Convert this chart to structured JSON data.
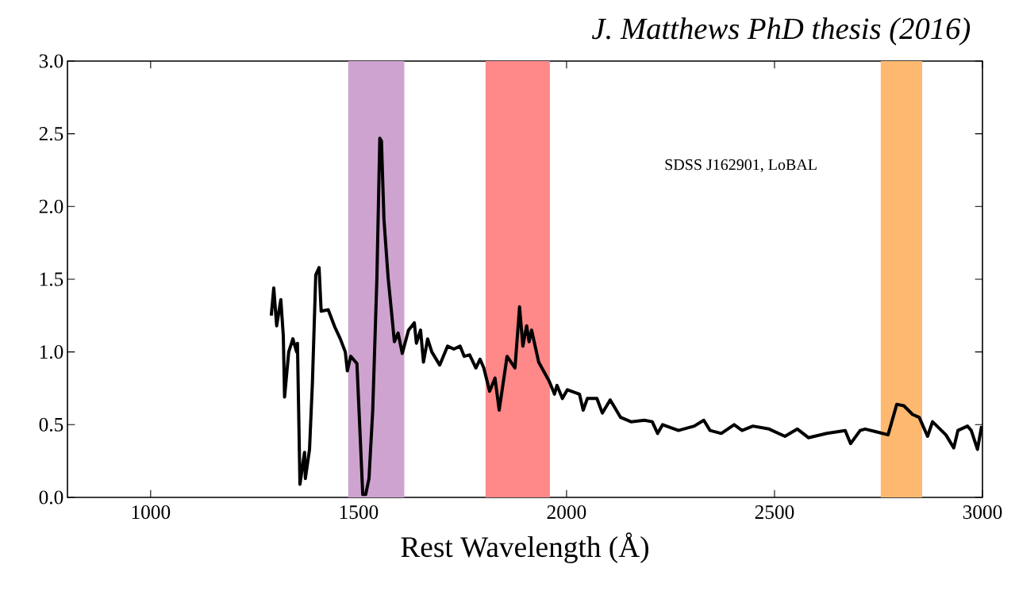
{
  "chart_data": {
    "type": "line",
    "title": "J. Matthews PhD thesis (2016)",
    "xlabel": "Rest Wavelength (Å)",
    "annotations": [
      "SDSS J162901, LoBAL"
    ],
    "x": [
      1290,
      1296,
      1303,
      1313,
      1319,
      1322,
      1332,
      1342,
      1351,
      1353,
      1359,
      1370,
      1372,
      1382,
      1389,
      1397,
      1405,
      1410,
      1427,
      1443,
      1456,
      1468,
      1473,
      1481,
      1496,
      1510,
      1517,
      1525,
      1534,
      1544,
      1551,
      1555,
      1561,
      1571,
      1580,
      1586,
      1595,
      1605,
      1620,
      1634,
      1639,
      1649,
      1656,
      1666,
      1676,
      1695,
      1714,
      1729,
      1744,
      1754,
      1767,
      1782,
      1792,
      1801,
      1815,
      1828,
      1838,
      1857,
      1876,
      1887,
      1895,
      1904,
      1910,
      1916,
      1933,
      1958,
      1971,
      1977,
      1990,
      2002,
      2031,
      2040,
      2050,
      2073,
      2086,
      2105,
      2130,
      2155,
      2187,
      2206,
      2219,
      2231,
      2269,
      2307,
      2330,
      2345,
      2372,
      2403,
      2422,
      2448,
      2487,
      2525,
      2555,
      2582,
      2626,
      2670,
      2683,
      2706,
      2718,
      2746,
      2773,
      2794,
      2811,
      2832,
      2848,
      2868,
      2880,
      2912,
      2931,
      2941,
      2964,
      2973,
      2988,
      2998
    ],
    "series": [
      {
        "color": "#000000",
        "values": [
          1.25,
          1.44,
          1.18,
          1.36,
          1.11,
          0.69,
          1.0,
          1.09,
          1.0,
          1.06,
          0.09,
          0.31,
          0.13,
          0.33,
          0.79,
          1.53,
          1.58,
          1.28,
          1.29,
          1.17,
          1.09,
          1.0,
          0.87,
          0.97,
          0.92,
          0.02,
          0.02,
          0.13,
          0.6,
          1.51,
          2.47,
          2.45,
          1.91,
          1.51,
          1.25,
          1.07,
          1.13,
          0.99,
          1.15,
          1.2,
          1.06,
          1.15,
          0.93,
          1.09,
          1.0,
          0.91,
          1.04,
          1.02,
          1.04,
          0.97,
          0.98,
          0.89,
          0.95,
          0.89,
          0.73,
          0.82,
          0.6,
          0.97,
          0.89,
          1.31,
          1.04,
          1.18,
          1.07,
          1.15,
          0.93,
          0.8,
          0.71,
          0.77,
          0.68,
          0.74,
          0.71,
          0.6,
          0.68,
          0.68,
          0.58,
          0.67,
          0.55,
          0.52,
          0.53,
          0.52,
          0.44,
          0.5,
          0.46,
          0.49,
          0.53,
          0.46,
          0.44,
          0.5,
          0.46,
          0.49,
          0.47,
          0.42,
          0.47,
          0.41,
          0.44,
          0.46,
          0.37,
          0.46,
          0.47,
          0.45,
          0.43,
          0.64,
          0.63,
          0.57,
          0.55,
          0.42,
          0.52,
          0.43,
          0.34,
          0.46,
          0.49,
          0.46,
          0.33,
          0.49
        ]
      }
    ],
    "bands": [
      {
        "axis": "x",
        "from": 1475,
        "to": 1610,
        "color": "#cfa3d0"
      },
      {
        "axis": "x",
        "from": 1805,
        "to": 1960,
        "color": "#ff8888"
      },
      {
        "axis": "x",
        "from": 2755,
        "to": 2855,
        "color": "#ffb86f"
      }
    ],
    "xlim": [
      800,
      3000
    ],
    "ylim": [
      0,
      3
    ],
    "xticks": [
      1000,
      1500,
      2000,
      2500,
      3000
    ],
    "yticks": [
      {
        "value": 0,
        "label": "0.0"
      },
      {
        "value": 0.5,
        "label": "0.5"
      },
      {
        "value": 1,
        "label": "1.0"
      },
      {
        "value": 1.5,
        "label": "1.5"
      },
      {
        "value": 2,
        "label": "2.0"
      },
      {
        "value": 2.5,
        "label": "2.5"
      },
      {
        "value": 3,
        "label": "3.0"
      }
    ],
    "grid": false,
    "marker": "none",
    "line_style": "solid"
  }
}
